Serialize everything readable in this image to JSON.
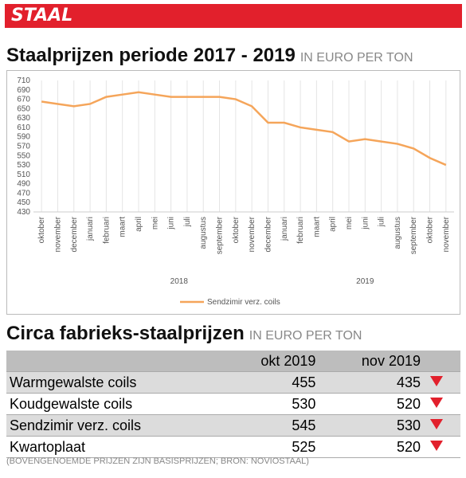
{
  "header": "STAAL",
  "chart_data": {
    "type": "line",
    "title": "Staalprijzen periode 2017 - 2019",
    "subtitle": "IN EURO PER TON",
    "categories": [
      "oktober",
      "november",
      "december",
      "januari",
      "februari",
      "maart",
      "april",
      "mei",
      "juni",
      "juli",
      "augustus",
      "september",
      "oktober",
      "november",
      "december",
      "januari",
      "februari",
      "maart",
      "april",
      "mei",
      "juni",
      "juli",
      "augustus",
      "september",
      "oktober",
      "november"
    ],
    "x_groups": [
      "2018",
      "2019"
    ],
    "series": [
      {
        "name": "Sendzimir verz. coils",
        "color": "#f5a55a",
        "values": [
          665,
          660,
          655,
          660,
          675,
          680,
          685,
          680,
          675,
          675,
          675,
          675,
          670,
          655,
          620,
          620,
          610,
          605,
          600,
          580,
          585,
          580,
          575,
          565,
          545,
          530
        ]
      }
    ],
    "ylim": [
      430,
      710
    ],
    "yticks": [
      430,
      450,
      470,
      490,
      510,
      530,
      550,
      570,
      590,
      610,
      630,
      650,
      670,
      690,
      710
    ],
    "grid": true,
    "legend": "bottom"
  },
  "table": {
    "title": "Circa fabrieks-staalprijzen",
    "subtitle": "IN EURO PER TON",
    "columns": [
      "okt 2019",
      "nov 2019"
    ],
    "rows": [
      {
        "label": "Warmgewalste coils",
        "values": [
          455,
          435
        ]
      },
      {
        "label": "Koudgewalste coils",
        "values": [
          530,
          520
        ]
      },
      {
        "label": "Sendzimir verz. coils",
        "values": [
          545,
          530
        ]
      },
      {
        "label": "Kwartoplaat",
        "values": [
          525,
          520
        ]
      }
    ],
    "footnote": "(BOVENGENOEMDE PRIJZEN ZIJN BASISPRIJZEN; BRON: NOVIOSTAAL)"
  }
}
